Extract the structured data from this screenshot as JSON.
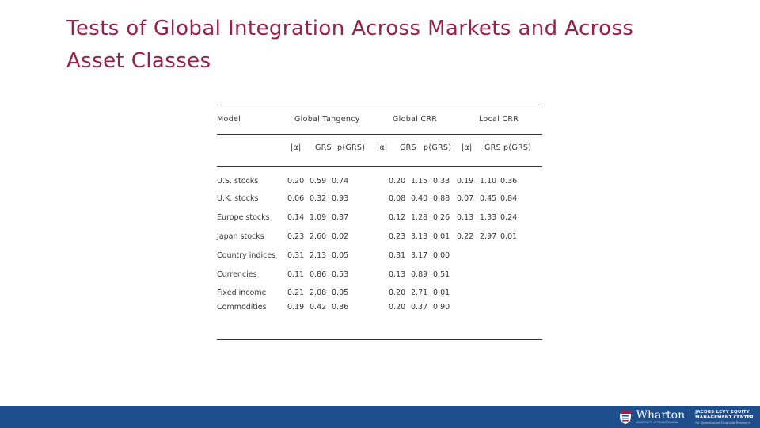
{
  "title": "Tests of Global Integration Across Markets and Across Asset Classes",
  "table": {
    "header_groups": {
      "model": "Model",
      "global_tangency": "Global Tangency",
      "global_crr": "Global CRR",
      "local_crr": "Local CRR"
    },
    "subheaders": {
      "gt_alpha": "|α|",
      "gt_grs": "GRS",
      "gt_p": "p(GRS)",
      "gc_alpha": "|α|",
      "gc_grs": "GRS",
      "gc_p": "p(GRS)",
      "lc_alpha": "|α|",
      "lc_grs": "GRS",
      "lc_p": "p(GRS)"
    },
    "rows": [
      {
        "label": "U.S. stocks",
        "gt": [
          "0.20",
          "0.59",
          "0.74"
        ],
        "gc": [
          "0.20",
          "1.15",
          "0.33"
        ],
        "lc": [
          "0.19",
          "1.10",
          "0.36"
        ]
      },
      {
        "label": "U.K. stocks",
        "gt": [
          "0.06",
          "0.32",
          "0.93"
        ],
        "gc": [
          "0.08",
          "0.40",
          "0.88"
        ],
        "lc": [
          "0.07",
          "0.45",
          "0.84"
        ]
      },
      {
        "label": "Europe stocks",
        "gt": [
          "0.14",
          "1.09",
          "0.37"
        ],
        "gc": [
          "0.12",
          "1.28",
          "0.26"
        ],
        "lc": [
          "0.13",
          "1.33",
          "0.24"
        ]
      },
      {
        "label": "Japan stocks",
        "gt": [
          "0.23",
          "2.60",
          "0.02"
        ],
        "gc": [
          "0.23",
          "3.13",
          "0.01"
        ],
        "lc": [
          "0.22",
          "2.97",
          "0.01"
        ]
      },
      {
        "label": "Country indices",
        "gt": [
          "0.31",
          "2.13",
          "0.05"
        ],
        "gc": [
          "0.31",
          "3.17",
          "0.00"
        ],
        "lc": []
      },
      {
        "label": "Currencies",
        "gt": [
          "0.11",
          "0.86",
          "0.53"
        ],
        "gc": [
          "0.13",
          "0.89",
          "0.51"
        ],
        "lc": []
      },
      {
        "label": "Fixed income",
        "gt": [
          "0.21",
          "2.08",
          "0.05"
        ],
        "gc": [
          "0.20",
          "2.71",
          "0.01"
        ],
        "lc": []
      },
      {
        "label": "Commodities",
        "gt": [
          "0.19",
          "0.42",
          "0.86"
        ],
        "gc": [
          "0.20",
          "0.37",
          "0.90"
        ],
        "lc": []
      }
    ]
  },
  "footer": {
    "wharton": "Wharton",
    "wharton_sub": "UNIVERSITY of PENNSYLVANIA",
    "center_line1": "JACOBS LEVY EQUITY",
    "center_line2": "MANAGEMENT CENTER",
    "center_line3": "for Quantitative Financial Research",
    "shield_icon": "wharton-shield-icon",
    "colors": {
      "footer_bg": "#1f4e8c",
      "title": "#9b1f48"
    }
  }
}
